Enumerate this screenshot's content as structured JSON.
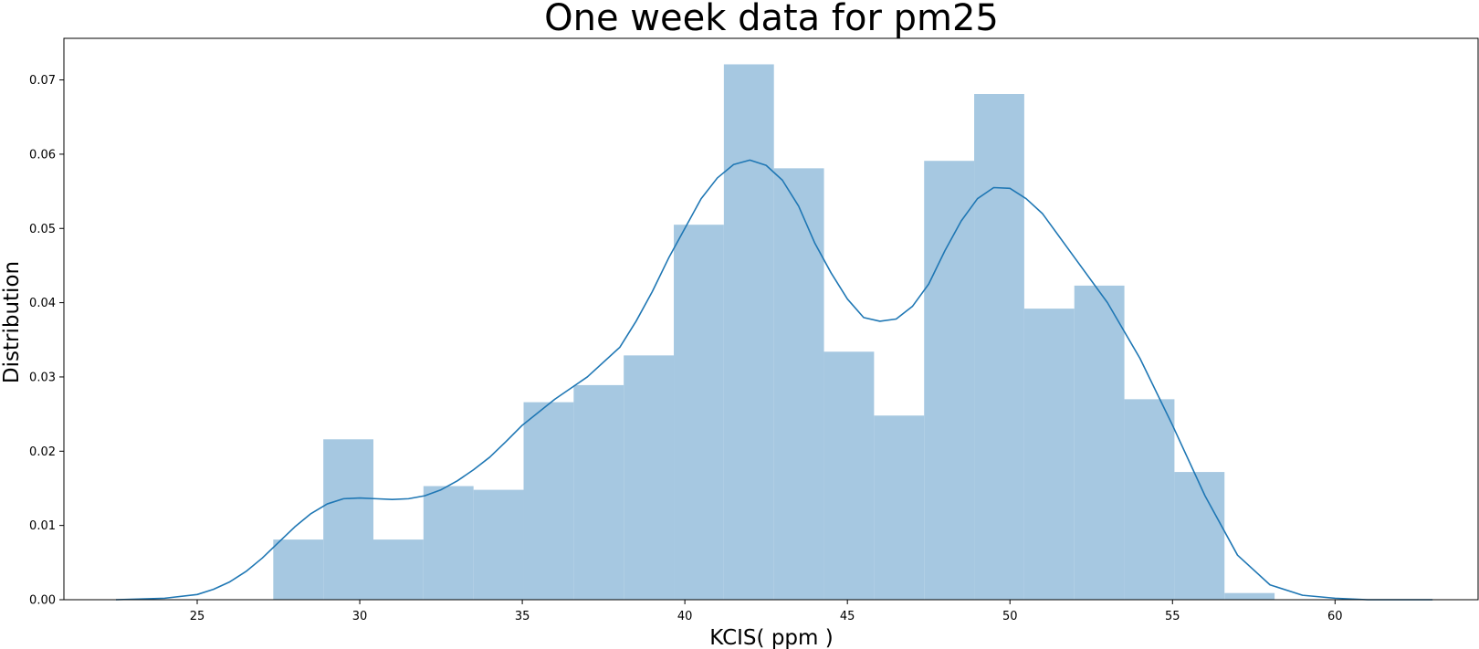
{
  "chart_data": {
    "type": "histogram",
    "title": "One week data for pm25",
    "xlabel": "KCIS( ppm )",
    "ylabel": "Distribution",
    "xlim": [
      20.9,
      64.4
    ],
    "ylim": [
      0,
      0.0756
    ],
    "x_ticks": [
      25,
      30,
      35,
      40,
      45,
      50,
      55,
      60
    ],
    "y_ticks": [
      0.0,
      0.01,
      0.02,
      0.03,
      0.04,
      0.05,
      0.06,
      0.07
    ],
    "x_tick_labels": [
      "25",
      "30",
      "35",
      "40",
      "45",
      "50",
      "55",
      "60"
    ],
    "y_tick_labels": [
      "0.00",
      "0.01",
      "0.02",
      "0.03",
      "0.04",
      "0.05",
      "0.06",
      "0.07"
    ],
    "grid": false,
    "bar_color": "#a6c8e1",
    "line_color": "#1f77b4",
    "bins": [
      {
        "x0": 27.34,
        "x1": 28.88,
        "value": 0.0081
      },
      {
        "x0": 28.88,
        "x1": 30.42,
        "value": 0.0216
      },
      {
        "x0": 30.42,
        "x1": 31.96,
        "value": 0.0081
      },
      {
        "x0": 31.96,
        "x1": 33.5,
        "value": 0.0153
      },
      {
        "x0": 33.5,
        "x1": 35.04,
        "value": 0.0148
      },
      {
        "x0": 35.04,
        "x1": 36.58,
        "value": 0.0266
      },
      {
        "x0": 36.58,
        "x1": 38.12,
        "value": 0.0289
      },
      {
        "x0": 38.12,
        "x1": 39.66,
        "value": 0.0329
      },
      {
        "x0": 39.66,
        "x1": 41.2,
        "value": 0.0505
      },
      {
        "x0": 41.2,
        "x1": 42.74,
        "value": 0.0721
      },
      {
        "x0": 42.74,
        "x1": 44.28,
        "value": 0.0581
      },
      {
        "x0": 44.28,
        "x1": 45.82,
        "value": 0.0334
      },
      {
        "x0": 45.82,
        "x1": 47.36,
        "value": 0.0248
      },
      {
        "x0": 47.36,
        "x1": 48.9,
        "value": 0.0591
      },
      {
        "x0": 48.9,
        "x1": 50.44,
        "value": 0.0681
      },
      {
        "x0": 50.44,
        "x1": 51.98,
        "value": 0.0392
      },
      {
        "x0": 51.98,
        "x1": 53.52,
        "value": 0.0423
      },
      {
        "x0": 53.52,
        "x1": 55.06,
        "value": 0.027
      },
      {
        "x0": 55.06,
        "x1": 56.6,
        "value": 0.0172
      },
      {
        "x0": 56.6,
        "x1": 58.14,
        "value": 0.0009
      }
    ],
    "kde": {
      "x": [
        22.5,
        24.0,
        25.0,
        25.5,
        26.0,
        26.5,
        27.0,
        27.5,
        28.0,
        28.5,
        29.0,
        29.5,
        30.0,
        30.5,
        31.0,
        31.5,
        32.0,
        32.5,
        33.0,
        33.5,
        34.0,
        34.5,
        35.0,
        36.0,
        37.0,
        38.0,
        38.5,
        39.0,
        39.5,
        40.0,
        40.5,
        41.0,
        41.5,
        42.0,
        42.5,
        43.0,
        43.5,
        44.0,
        44.5,
        45.0,
        45.5,
        46.0,
        46.5,
        47.0,
        47.5,
        48.0,
        48.5,
        49.0,
        49.5,
        50.0,
        50.5,
        51.0,
        52.0,
        53.0,
        54.0,
        55.0,
        56.0,
        57.0,
        58.0,
        59.0,
        60.0,
        61.0,
        62.0,
        63.0
      ],
      "y": [
        0.0,
        0.0002,
        0.0007,
        0.0014,
        0.0024,
        0.0038,
        0.0056,
        0.0077,
        0.0098,
        0.0116,
        0.0129,
        0.0136,
        0.0137,
        0.0136,
        0.0135,
        0.0136,
        0.014,
        0.0148,
        0.016,
        0.0175,
        0.0192,
        0.0213,
        0.0235,
        0.027,
        0.03,
        0.034,
        0.0375,
        0.0415,
        0.046,
        0.05,
        0.054,
        0.0568,
        0.0586,
        0.0592,
        0.0585,
        0.0565,
        0.053,
        0.048,
        0.044,
        0.0405,
        0.038,
        0.0375,
        0.0378,
        0.0395,
        0.0425,
        0.047,
        0.051,
        0.054,
        0.0555,
        0.0554,
        0.054,
        0.052,
        0.046,
        0.04,
        0.0325,
        0.0235,
        0.014,
        0.006,
        0.002,
        0.0006,
        0.0002,
        0.0,
        0.0,
        0.0
      ]
    }
  }
}
